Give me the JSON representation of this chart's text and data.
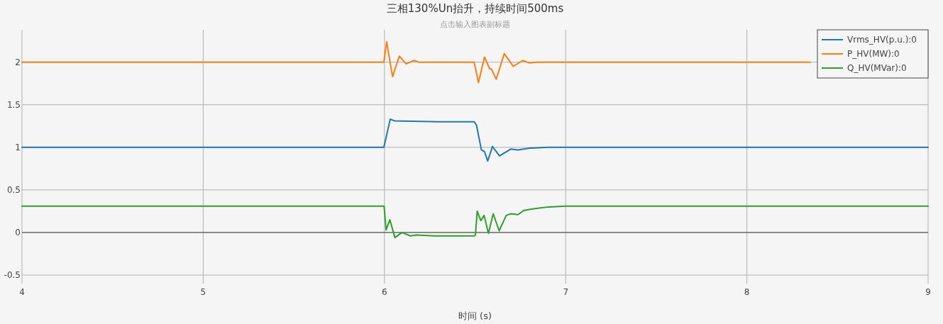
{
  "chart_data": {
    "type": "line",
    "title": "三相130%Un抬升，持续时间500ms",
    "subtitle": "点击输入图表副标题",
    "xlabel": "时间 (s)",
    "xlim": [
      4,
      9
    ],
    "xticks": [
      4,
      5,
      6,
      7,
      8,
      9
    ],
    "ylim": [
      -0.6,
      2.38
    ],
    "yticks": [
      -0.5,
      0,
      0.5,
      1,
      1.5,
      2
    ],
    "grid": true,
    "legend": "top right",
    "marker": "none",
    "line_style": "solid",
    "ref_lines": [
      {
        "axis": "y",
        "value": 0,
        "color": "#444444"
      }
    ],
    "series": [
      {
        "name": "Vrms_HV(p.u.):0",
        "color": "#1f77b4",
        "x": [
          4,
          5,
          5.997,
          6.032,
          6.056,
          6.3,
          6.495,
          6.508,
          6.535,
          6.552,
          6.57,
          6.596,
          6.635,
          6.698,
          6.737,
          6.8,
          6.905,
          7.0,
          8,
          9
        ],
        "values": [
          1.0,
          1.0,
          1.0,
          1.33,
          1.31,
          1.3,
          1.3,
          1.26,
          0.97,
          0.95,
          0.84,
          1.01,
          0.9,
          0.98,
          0.97,
          0.99,
          1.0,
          1.0,
          1.0,
          1.0
        ]
      },
      {
        "name": "P_HV(MW):0",
        "color": "#ff7f0e",
        "x": [
          4,
          5,
          5.997,
          6.012,
          6.045,
          6.082,
          6.12,
          6.163,
          6.19,
          6.3,
          6.495,
          6.519,
          6.552,
          6.581,
          6.59,
          6.617,
          6.661,
          6.711,
          6.763,
          6.8,
          6.84,
          7,
          8,
          8.35
        ],
        "values": [
          2.0,
          2.0,
          2.0,
          2.24,
          1.83,
          2.07,
          1.98,
          2.02,
          2.0,
          2.0,
          2.0,
          1.76,
          2.06,
          1.92,
          1.92,
          1.8,
          2.1,
          1.95,
          2.02,
          1.99,
          2.0,
          2.0,
          2.0,
          2.0
        ]
      },
      {
        "name": "Q_HV(MVar):0",
        "color": "#2ca02c",
        "x": [
          4,
          5,
          5.998,
          6.009,
          6.03,
          6.058,
          6.097,
          6.143,
          6.175,
          6.279,
          6.495,
          6.502,
          6.512,
          6.532,
          6.55,
          6.574,
          6.6,
          6.633,
          6.672,
          6.698,
          6.737,
          6.77,
          6.829,
          6.907,
          6.998,
          7.09,
          8,
          9
        ],
        "values": [
          0.31,
          0.31,
          0.31,
          0.03,
          0.15,
          -0.06,
          0.0,
          -0.04,
          -0.03,
          -0.04,
          -0.04,
          -0.03,
          0.25,
          0.14,
          0.2,
          -0.01,
          0.22,
          0.02,
          0.2,
          0.22,
          0.21,
          0.26,
          0.28,
          0.3,
          0.31,
          0.31,
          0.31,
          0.31
        ]
      }
    ]
  }
}
